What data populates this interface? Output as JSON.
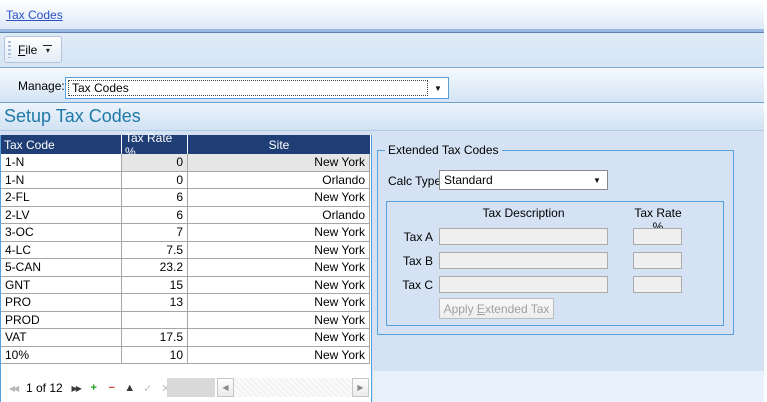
{
  "breadcrumb": {
    "link_label": "Tax Codes"
  },
  "toolbar": {
    "file_button": {
      "mnemonic": "F",
      "rest": "ile"
    },
    "overflow_icon_glyph": "▾"
  },
  "manage": {
    "label": "Manage:",
    "value": "Tax Codes",
    "dropdown_icon_glyph": "▼"
  },
  "page": {
    "title": "Setup Tax Codes"
  },
  "grid": {
    "columns": [
      {
        "key": "code",
        "label": "Tax Code"
      },
      {
        "key": "rate",
        "label": "Tax Rate %"
      },
      {
        "key": "site",
        "label": "Site"
      }
    ],
    "selected_row_index": 0,
    "rows": [
      {
        "code": "1-N",
        "rate": "0",
        "site": "New York"
      },
      {
        "code": "1-N",
        "rate": "0",
        "site": "Orlando"
      },
      {
        "code": "2-FL",
        "rate": "6",
        "site": "New York"
      },
      {
        "code": "2-LV",
        "rate": "6",
        "site": "Orlando"
      },
      {
        "code": "3-OC",
        "rate": "7",
        "site": "New York"
      },
      {
        "code": "4-LC",
        "rate": "7.5",
        "site": "New York"
      },
      {
        "code": "5-CAN",
        "rate": "23.2",
        "site": "New York"
      },
      {
        "code": "GNT",
        "rate": "15",
        "site": "New York"
      },
      {
        "code": "PRO",
        "rate": "13",
        "site": "New York"
      },
      {
        "code": "PROD",
        "rate": "",
        "site": "New York"
      },
      {
        "code": "VAT",
        "rate": "17.5",
        "site": "New York"
      },
      {
        "code": "10%",
        "rate": "10",
        "site": "New York"
      }
    ],
    "navigator": {
      "count_text": "1 of 12",
      "buttons_before_count": [
        {
          "name": "first-record-button",
          "glyph": "◀◀",
          "color": "#b8b8b8",
          "small": true,
          "disabled": true
        }
      ],
      "buttons_after_count": [
        {
          "name": "last-record-button",
          "glyph": "▶▶",
          "color": "#3a3a3a",
          "small": true,
          "disabled": false
        },
        {
          "name": "add-row-button",
          "glyph": "+",
          "color": "#22a322",
          "bold": true,
          "disabled": false
        },
        {
          "name": "delete-row-button",
          "glyph": "−",
          "color": "#d04545",
          "bold": true,
          "disabled": false
        },
        {
          "name": "edit-row-button",
          "glyph": "▲",
          "color": "#3a3a3a",
          "small": false,
          "disabled": false
        },
        {
          "name": "post-edit-button",
          "glyph": "✓",
          "color": "#c2c2c2",
          "small": false,
          "disabled": true
        },
        {
          "name": "cancel-edit-button",
          "glyph": "✕",
          "color": "#c2c2c2",
          "small": false,
          "disabled": true
        }
      ],
      "scroll_left_glyph": "◀",
      "scroll_right_glyph": "▶"
    }
  },
  "panel": {
    "title": "Extended Tax Codes",
    "calc_type_label": "Calc Type",
    "calc_type_value": "Standard",
    "calc_dropdown_icon_glyph": "▼",
    "description_header": "Tax Description",
    "rate_header": "Tax Rate %",
    "tax_rows": [
      {
        "label": "Tax A",
        "description_value": "",
        "rate_value": ""
      },
      {
        "label": "Tax B",
        "description_value": "",
        "rate_value": ""
      },
      {
        "label": "Tax C",
        "description_value": "",
        "rate_value": ""
      }
    ],
    "apply_button": {
      "pre": "Apply ",
      "mnemonic": "E",
      "rest": "xtended Tax"
    }
  },
  "colors": {
    "grid_header_bg": "#1f3e75",
    "selected_row_bg": "#e6e6e6",
    "panel_border_blue": "#56a0dc",
    "title_text": "#1f7aa8",
    "link_text": "#2b50c8",
    "add_icon_green": "#22a322",
    "delete_icon_red": "#d04545"
  }
}
